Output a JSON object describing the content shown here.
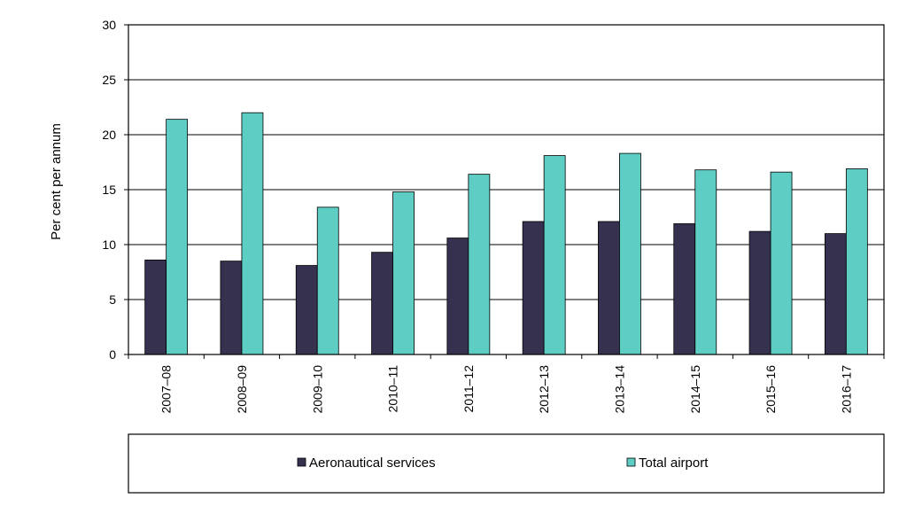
{
  "chart_data": {
    "type": "bar",
    "title": "",
    "xlabel": "",
    "ylabel": "Per cent per annum",
    "ylim": [
      0,
      30
    ],
    "yticks": [
      0,
      5,
      10,
      15,
      20,
      25,
      30
    ],
    "grid": true,
    "legend_position": "bottom",
    "categories": [
      "2007–08",
      "2008–09",
      "2009–10",
      "2010–11",
      "2011–12",
      "2012–13",
      "2013–14",
      "2014–15",
      "2015–16",
      "2016–17"
    ],
    "series": [
      {
        "name": "Aeronautical services",
        "color": "#35314f",
        "values": [
          8.6,
          8.5,
          8.1,
          9.3,
          10.6,
          12.1,
          12.1,
          11.9,
          11.2,
          11.0
        ]
      },
      {
        "name": "Total airport",
        "color": "#5ecdc4",
        "values": [
          21.4,
          22.0,
          13.4,
          14.8,
          16.4,
          18.1,
          18.3,
          16.8,
          16.6,
          16.9
        ]
      }
    ]
  }
}
